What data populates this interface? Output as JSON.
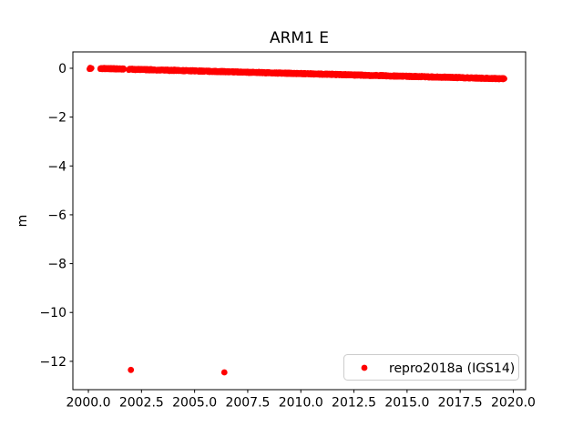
{
  "figure": {
    "background": "#ffffff",
    "spine_color": "#000000",
    "text_color": "#000000"
  },
  "chart_data": {
    "type": "scatter",
    "title": "ARM1 E",
    "xlabel": "",
    "ylabel": "m",
    "xlim": [
      1999.27,
      2020.58
    ],
    "ylim": [
      -13.16,
      0.67
    ],
    "xticks": [
      2000.0,
      2002.5,
      2005.0,
      2007.5,
      2010.0,
      2012.5,
      2015.0,
      2017.5,
      2020.0
    ],
    "xtick_labels": [
      "2000.0",
      "2002.5",
      "2005.0",
      "2007.5",
      "2010.0",
      "2012.5",
      "2015.0",
      "2017.5",
      "2020.0"
    ],
    "yticks": [
      0,
      -2,
      -4,
      -6,
      -8,
      -10,
      -12
    ],
    "ytick_labels": [
      "0",
      "−2",
      "−4",
      "−6",
      "−8",
      "−10",
      "−12"
    ],
    "grid": false,
    "legend": {
      "label": "repro2018a (IGS14)",
      "loc": "lower right",
      "edge_color": "#cccccc",
      "face_color": "#ffffff"
    },
    "series": [
      {
        "name": "repro2018a (IGS14)",
        "color": "#ff0000",
        "marker": "dot",
        "marker_radius_px": 3.2,
        "description": "dense daily time series declining roughly linearly from ~0.0 m in 2000 to ~-0.43 m in 2019.6, with a gap during 2000.2-2000.5 and 2001.7-2001.9",
        "segments": [
          {
            "x_start": 2000.05,
            "x_end": 2000.15,
            "y_start": 0.0,
            "y_end": 0.0,
            "step": 0.03
          },
          {
            "x_start": 2000.56,
            "x_end": 2001.67,
            "y_start": -0.01,
            "y_end": -0.03,
            "step": 0.01
          },
          {
            "x_start": 2001.9,
            "x_end": 2019.58,
            "y_start": -0.04,
            "y_end": -0.43,
            "step": 0.01
          }
        ],
        "jitter": 0.03,
        "outliers": [
          [
            2002.0,
            -12.35
          ],
          [
            2006.4,
            -12.45
          ]
        ]
      }
    ]
  }
}
